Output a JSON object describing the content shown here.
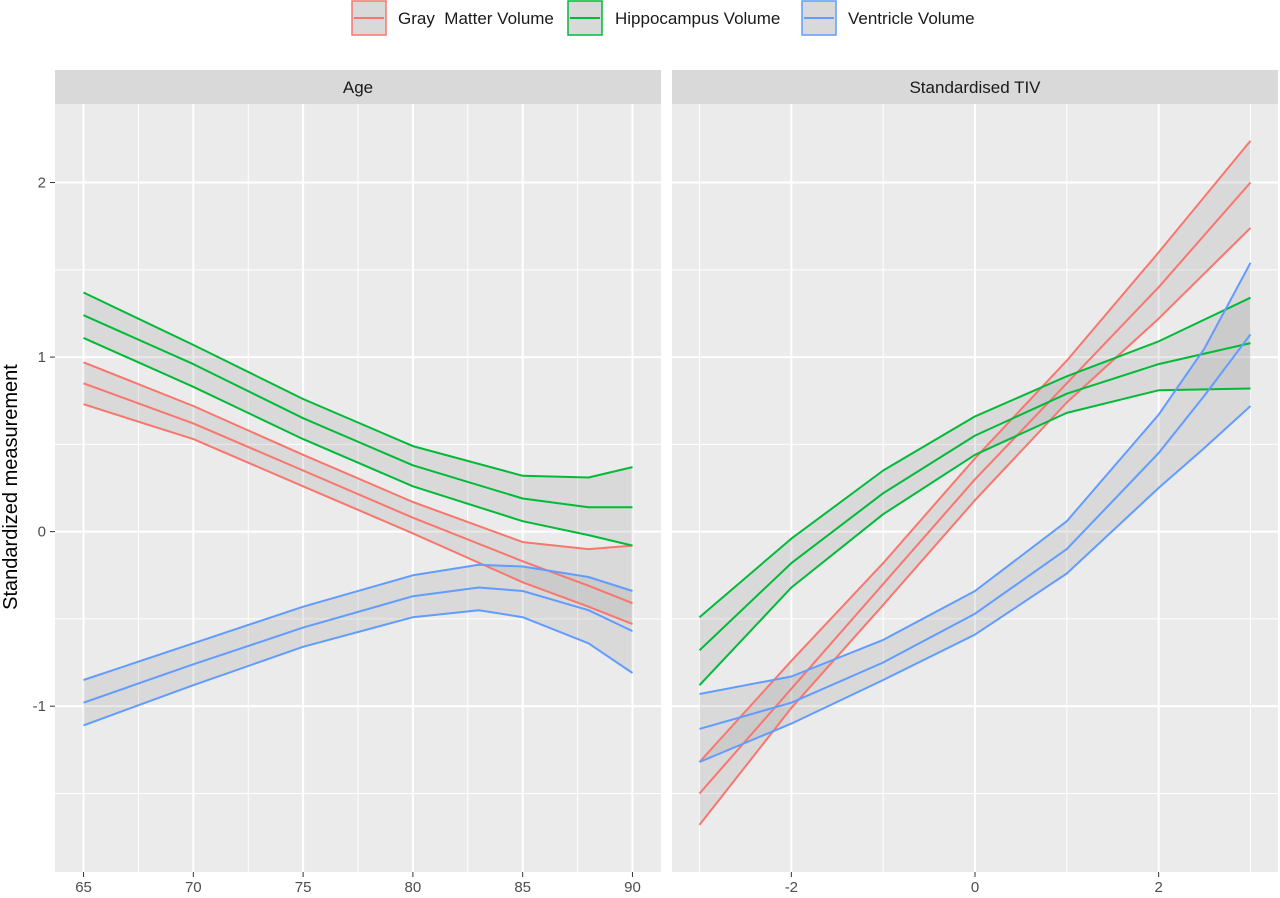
{
  "chart_data": {
    "type": "line",
    "ylabel": "Standardized measurement",
    "ylim": [
      -1.95,
      2.45
    ],
    "y_ticks": [
      -1,
      0,
      1,
      2
    ],
    "y_tick_labels": [
      "-1",
      "0",
      "1",
      "2"
    ],
    "grid": true,
    "ribbons": true,
    "legend": {
      "position": "top",
      "entries": [
        {
          "label": "Gray  Matter Volume",
          "color": "#F8766D"
        },
        {
          "label": "Hippocampus Volume",
          "color": "#00BA38"
        },
        {
          "label": "Ventricle Volume",
          "color": "#619CFF"
        }
      ]
    },
    "panels": [
      {
        "strip": "Age",
        "xlim": [
          63.7,
          91.3
        ],
        "x_ticks": [
          65,
          70,
          75,
          80,
          85,
          90
        ],
        "x_tick_labels": [
          "65",
          "70",
          "75",
          "80",
          "85",
          "90"
        ],
        "x_minor": [
          67.5,
          72.5,
          77.5,
          82.5,
          87.5
        ],
        "series": [
          {
            "name": "Gray  Matter Volume",
            "color": "#F8766D",
            "x": [
              65,
              70,
              75,
              80,
              85,
              88,
              90
            ],
            "fit": [
              0.85,
              0.62,
              0.35,
              0.08,
              -0.17,
              -0.31,
              -0.41
            ],
            "lower": [
              0.73,
              0.53,
              0.26,
              -0.01,
              -0.29,
              -0.43,
              -0.53
            ],
            "upper": [
              0.97,
              0.72,
              0.44,
              0.17,
              -0.06,
              -0.1,
              -0.08
            ]
          },
          {
            "name": "Hippocampus Volume",
            "color": "#00BA38",
            "x": [
              65,
              70,
              75,
              80,
              85,
              88,
              90
            ],
            "fit": [
              1.24,
              0.96,
              0.65,
              0.38,
              0.19,
              0.14,
              0.14
            ],
            "lower": [
              1.11,
              0.83,
              0.53,
              0.26,
              0.06,
              -0.02,
              -0.08
            ],
            "upper": [
              1.37,
              1.07,
              0.76,
              0.49,
              0.32,
              0.31,
              0.37
            ]
          },
          {
            "name": "Ventricle Volume",
            "color": "#619CFF",
            "x": [
              65,
              70,
              75,
              80,
              83,
              85,
              88,
              90
            ],
            "fit": [
              -0.98,
              -0.76,
              -0.55,
              -0.37,
              -0.32,
              -0.34,
              -0.45,
              -0.57
            ],
            "lower": [
              -1.11,
              -0.88,
              -0.66,
              -0.49,
              -0.45,
              -0.49,
              -0.64,
              -0.81
            ],
            "upper": [
              -0.85,
              -0.64,
              -0.43,
              -0.25,
              -0.19,
              -0.2,
              -0.26,
              -0.34
            ]
          }
        ]
      },
      {
        "strip": "Standardised TIV",
        "xlim": [
          -3.3,
          3.3
        ],
        "x_ticks": [
          -2,
          0,
          2
        ],
        "x_tick_labels": [
          "-2",
          "0",
          "2"
        ],
        "x_minor": [
          -3,
          -1,
          1,
          3
        ],
        "series": [
          {
            "name": "Gray  Matter Volume",
            "color": "#F8766D",
            "x": [
              -3.0,
              -2.0,
              -1.0,
              0.0,
              1.0,
              2.0,
              3.0
            ],
            "fit": [
              -1.5,
              -0.9,
              -0.3,
              0.3,
              0.85,
              1.4,
              2.0
            ],
            "lower": [
              -1.68,
              -1.01,
              -0.42,
              0.18,
              0.74,
              1.22,
              1.74
            ],
            "upper": [
              -1.32,
              -0.74,
              -0.18,
              0.42,
              0.98,
              1.6,
              2.24
            ]
          },
          {
            "name": "Hippocampus Volume",
            "color": "#00BA38",
            "x": [
              -3.0,
              -2.0,
              -1.0,
              0.0,
              1.0,
              2.0,
              3.0
            ],
            "fit": [
              -0.68,
              -0.18,
              0.22,
              0.55,
              0.79,
              0.96,
              1.08
            ],
            "lower": [
              -0.88,
              -0.32,
              0.1,
              0.44,
              0.68,
              0.81,
              0.82
            ],
            "upper": [
              -0.49,
              -0.04,
              0.35,
              0.66,
              0.89,
              1.09,
              1.34
            ]
          },
          {
            "name": "Ventricle Volume",
            "color": "#619CFF",
            "x": [
              -3.0,
              -2.0,
              -1.0,
              0.0,
              1.0,
              2.0,
              2.5,
              3.0
            ],
            "fit": [
              -1.13,
              -0.98,
              -0.75,
              -0.47,
              -0.1,
              0.45,
              0.78,
              1.13
            ],
            "lower": [
              -1.32,
              -1.1,
              -0.85,
              -0.59,
              -0.24,
              0.25,
              0.48,
              0.72
            ],
            "upper": [
              -0.93,
              -0.83,
              -0.62,
              -0.34,
              0.06,
              0.67,
              1.05,
              1.54
            ]
          }
        ]
      }
    ]
  }
}
